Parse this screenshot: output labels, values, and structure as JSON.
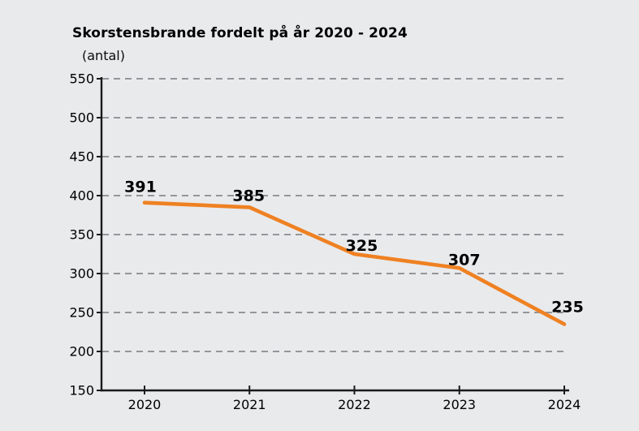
{
  "page": {
    "background": "#E9EAEC",
    "text_color": "#000000",
    "axis_color": "#1A1A1A",
    "grid_color": "#96969A"
  },
  "chart_data": {
    "type": "line",
    "title": "Skorstensbrande fordelt på år 2020 - 2024",
    "ylabel": "(antal)",
    "categories": [
      "2020",
      "2021",
      "2022",
      "2023",
      "2024"
    ],
    "values": [
      391,
      385,
      325,
      307,
      235
    ],
    "data_labels": [
      "391",
      "385",
      "325",
      "307",
      "235"
    ],
    "yticks": [
      550,
      500,
      450,
      400,
      350,
      300,
      250,
      200,
      150
    ],
    "ylim": [
      150,
      550
    ],
    "grid": "horizontal-dashed",
    "legend": "none",
    "line_color": "#EF8122"
  }
}
